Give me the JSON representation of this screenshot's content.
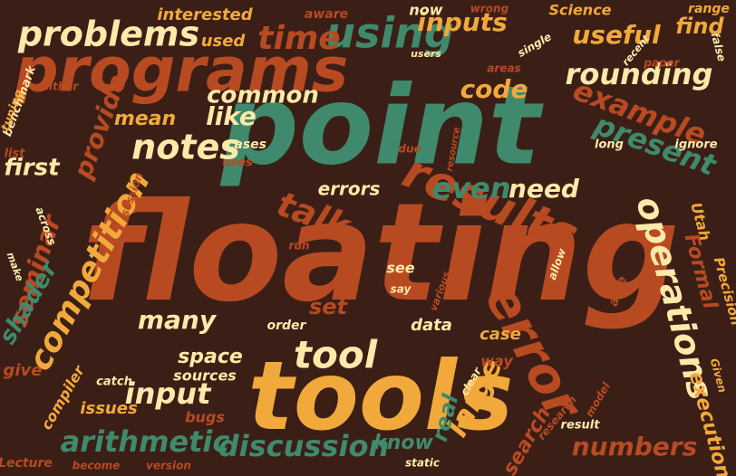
{
  "words": [
    "floating",
    "point",
    "tools",
    "programs",
    "results",
    "error",
    "operations",
    "using",
    "problems",
    "time",
    "inputs",
    "useful",
    "find",
    "code",
    "rounding",
    "example",
    "present",
    "notes",
    "like",
    "provide",
    "mean",
    "first",
    "competition",
    "seminar",
    "shader",
    "talk",
    "errors",
    "even",
    "need",
    "many",
    "tool",
    "input",
    "arithmetic",
    "discussion",
    "large",
    "real",
    "search",
    "numbers",
    "execution",
    "Formal",
    "Precision",
    "Utah",
    "set",
    "data",
    "case",
    "way",
    "order",
    "space",
    "sources",
    "issues",
    "give",
    "compiler",
    "catch",
    "bugs",
    "know",
    "Lecture",
    "become",
    "version",
    "static",
    "result",
    "research",
    "model",
    "Given",
    "clear",
    "see",
    "say",
    "various",
    "able",
    "allow",
    "run",
    "benchmark",
    "tuning",
    "list",
    "interested",
    "used",
    "common",
    "aware",
    "now",
    "wrong",
    "Science",
    "range",
    "single",
    "users",
    "recent",
    "false",
    "areas",
    "paper",
    "cases",
    "uses",
    "due",
    "resource",
    "long",
    "ignore",
    "either",
    "session",
    "across",
    "make"
  ]
}
